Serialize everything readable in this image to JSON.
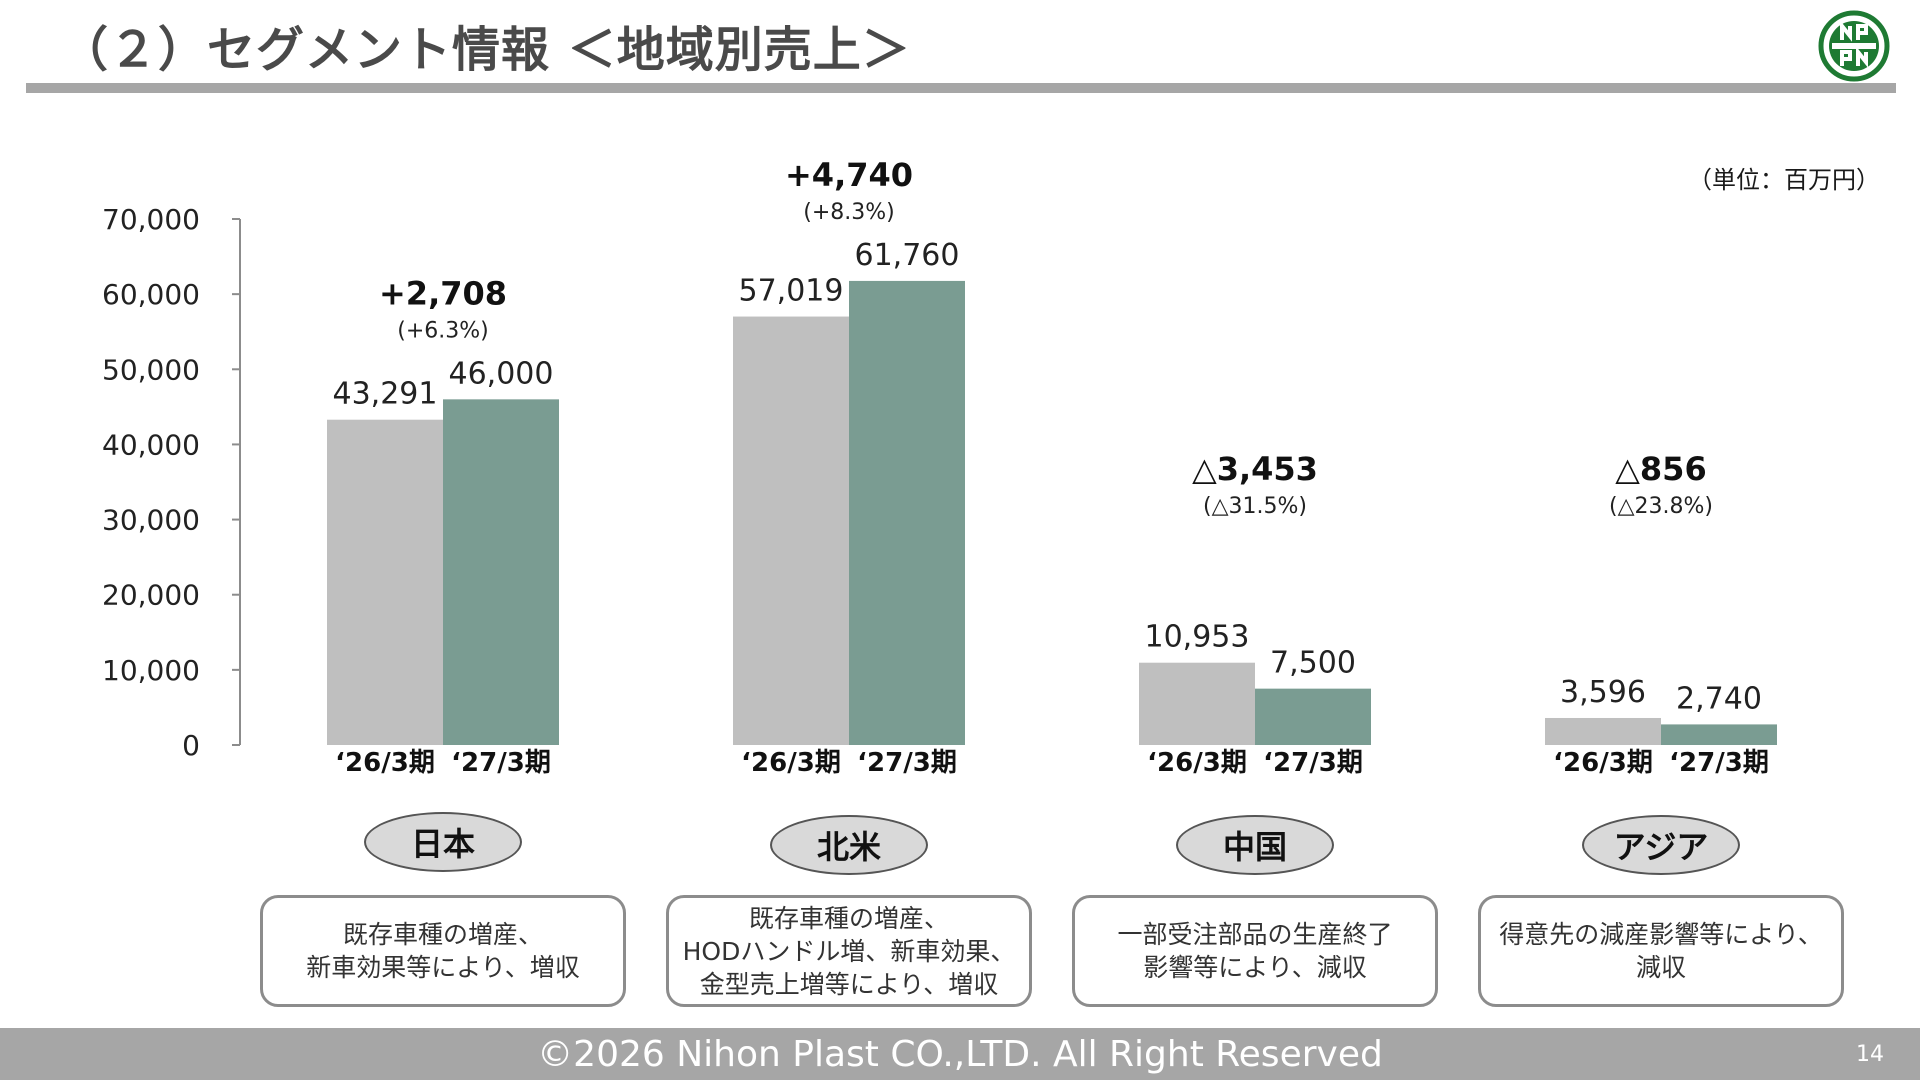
{
  "header": {
    "title": "（２）セグメント情報 ＜地域別売上＞"
  },
  "unit_label": "（単位：百万円）",
  "colors": {
    "prev_bar": "#bfbfbf",
    "curr_bar": "#7a9c92",
    "rule": "#a6a6a6",
    "logo_green": "#1e7a33"
  },
  "chart_data": {
    "type": "bar",
    "groups": [
      "日本",
      "北米",
      "中国",
      "アジア"
    ],
    "series": [
      {
        "values": [
          43291,
          57019,
          10953,
          3596
        ]
      },
      {
        "values": [
          46000,
          61760,
          7500,
          2740
        ]
      }
    ],
    "value_labels": [
      [
        "43,291",
        "46,000"
      ],
      [
        "57,019",
        "61,760"
      ],
      [
        "10,953",
        "7,500"
      ],
      [
        "3,596",
        "2,740"
      ]
    ],
    "period_labels": [
      "‘26/3期",
      "‘27/3期"
    ],
    "deltas": [
      {
        "value": "+2,708",
        "pct": "(+6.3%)"
      },
      {
        "value": "+4,740",
        "pct": "(+8.3%)"
      },
      {
        "value": "△3,453",
        "pct": "(△31.5%)"
      },
      {
        "value": "△856",
        "pct": "(△23.8%)"
      }
    ],
    "ylim": [
      0,
      70000
    ],
    "yticks": [
      0,
      10000,
      20000,
      30000,
      40000,
      50000,
      60000,
      70000
    ],
    "ytick_labels": [
      "0",
      "10,000",
      "20,000",
      "30,000",
      "40,000",
      "50,000",
      "60,000",
      "70,000"
    ],
    "grid": false
  },
  "regions": [
    "日本",
    "北米",
    "中国",
    "アジア"
  ],
  "notes": [
    "既存車種の増産、\n新車効果等により、増収",
    "既存車種の増産、\nHODハンドル増、新車効果、\n金型売上増等により、増収",
    "一部受注部品の生産終了\n影響等により、減収",
    "得意先の減産影響等により、\n減収"
  ],
  "footer": {
    "copyright": "©2026 Nihon Plast CO.,LTD. All Right Reserved",
    "page_number": "14"
  }
}
